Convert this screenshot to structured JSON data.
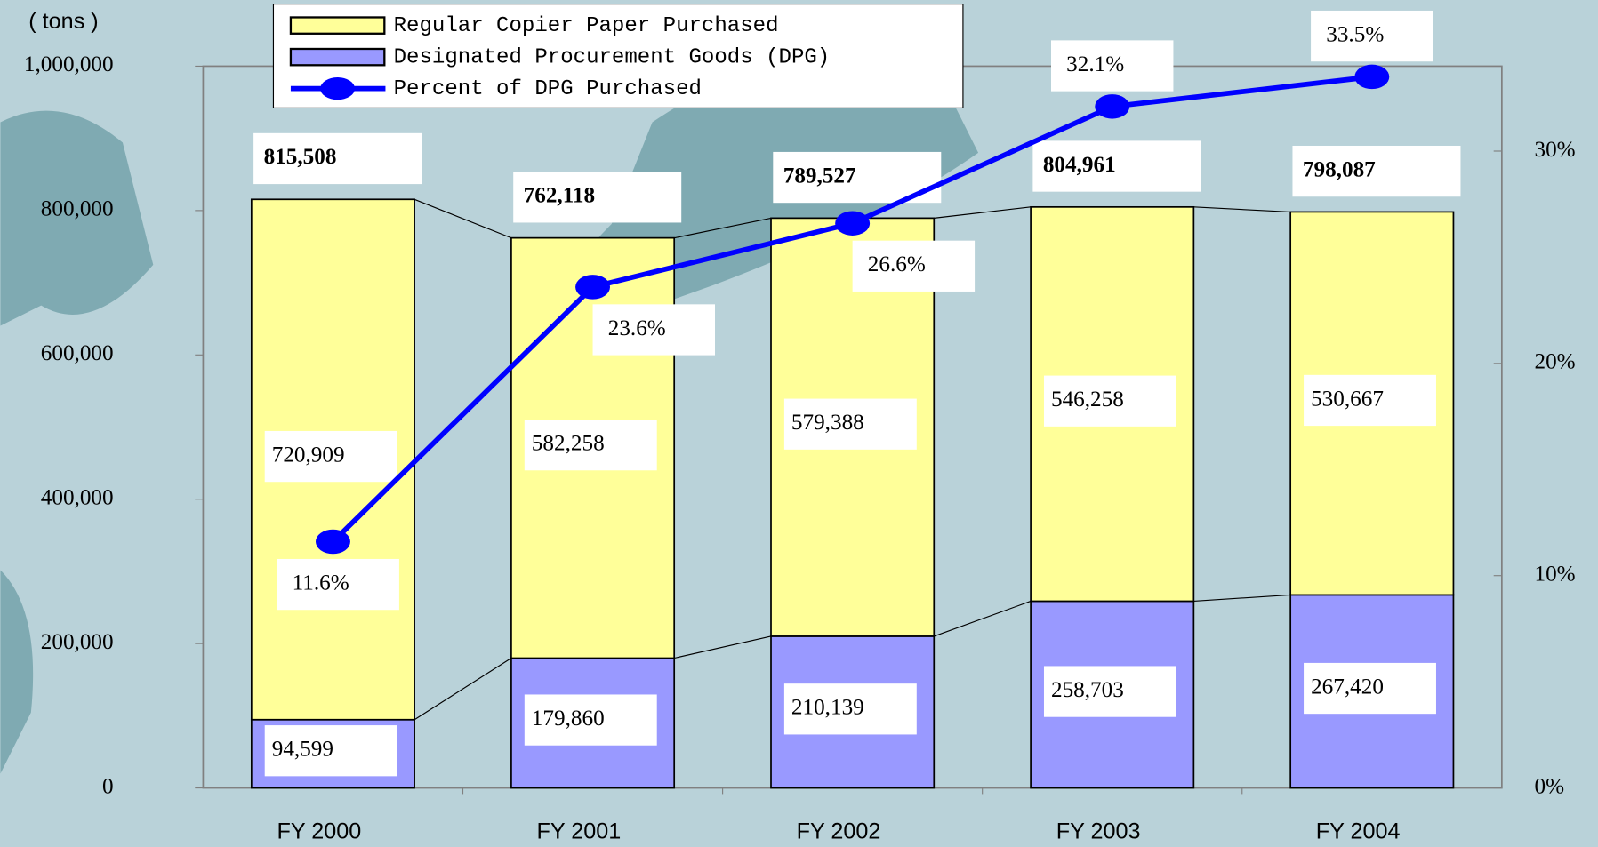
{
  "chart_data": {
    "type": "bar",
    "y_label": "( tons )",
    "categories": [
      "FY 2000",
      "FY 2001",
      "FY 2002",
      "FY 2003",
      "FY 2004"
    ],
    "series": [
      {
        "name": "Designated Procurement Goods (DPG)",
        "color": "#9999ff",
        "values": [
          94599,
          179860,
          210139,
          258703,
          267420
        ],
        "value_labels": [
          "94,599",
          "179,860",
          "210,139",
          "258,703",
          "267,420"
        ]
      },
      {
        "name": "Regular Copier Paper Purchased",
        "color": "#ffff99",
        "values": [
          720909,
          582258,
          579388,
          546258,
          530667
        ],
        "value_labels": [
          "720,909",
          "582,258",
          "579,388",
          "546,258",
          "530,667"
        ]
      },
      {
        "name": "Percent of DPG Purchased",
        "color": "#0000ff",
        "axis": "y2",
        "values": [
          11.6,
          23.6,
          26.6,
          32.1,
          33.5
        ],
        "value_labels": [
          "11.6%",
          "23.6%",
          "26.6%",
          "32.1%",
          "33.5%"
        ]
      }
    ],
    "totals": [
      815508,
      762118,
      789527,
      804961,
      798087
    ],
    "total_labels": [
      "815,508",
      "762,118",
      "789,527",
      "804,961",
      "798,087"
    ],
    "ylim": [
      0,
      1000000
    ],
    "yticks": [
      {
        "value": 0,
        "label": "0"
      },
      {
        "value": 200000,
        "label": "200,000"
      },
      {
        "value": 400000,
        "label": "400,000"
      },
      {
        "value": 600000,
        "label": "600,000"
      },
      {
        "value": 800000,
        "label": "800,000"
      },
      {
        "value": 1000000,
        "label": "1,000,000"
      }
    ],
    "y2lim": [
      0,
      34
    ],
    "y2ticks": [
      {
        "value": 0,
        "label": "0%"
      },
      {
        "value": 10,
        "label": "10%"
      },
      {
        "value": 20,
        "label": "20%"
      },
      {
        "value": 30,
        "label": "30%"
      }
    ]
  }
}
